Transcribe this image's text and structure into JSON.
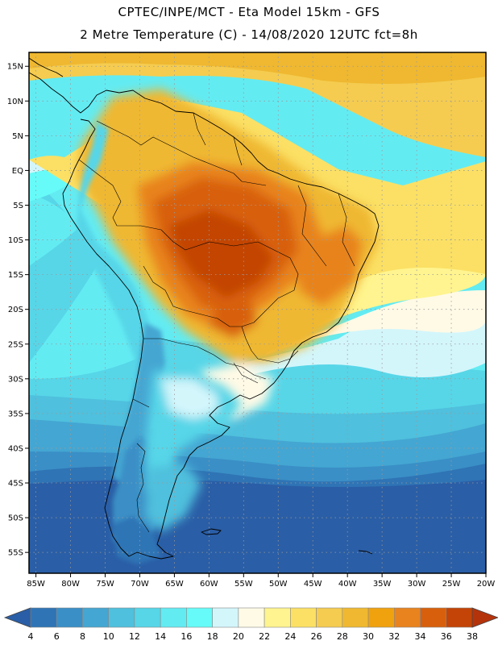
{
  "header": {
    "line1": "CPTEC/INPE/MCT -  Eta Model 15km - GFS",
    "line2": "2 Metre Temperature (C) - 14/08/2020 12UTC fct=8h"
  },
  "map": {
    "lon_range": [
      -86,
      -20
    ],
    "lat_range": [
      -58,
      17
    ],
    "lat_ticks": [
      {
        "value": 15,
        "label": "15N"
      },
      {
        "value": 10,
        "label": "10N"
      },
      {
        "value": 5,
        "label": "5N"
      },
      {
        "value": 0,
        "label": "EQ"
      },
      {
        "value": -5,
        "label": "5S"
      },
      {
        "value": -10,
        "label": "10S"
      },
      {
        "value": -15,
        "label": "15S"
      },
      {
        "value": -20,
        "label": "20S"
      },
      {
        "value": -25,
        "label": "25S"
      },
      {
        "value": -30,
        "label": "30S"
      },
      {
        "value": -35,
        "label": "35S"
      },
      {
        "value": -40,
        "label": "40S"
      },
      {
        "value": -45,
        "label": "45S"
      },
      {
        "value": -50,
        "label": "50S"
      },
      {
        "value": -55,
        "label": "55S"
      }
    ],
    "lon_ticks": [
      {
        "value": -85,
        "label": "85W"
      },
      {
        "value": -80,
        "label": "80W"
      },
      {
        "value": -75,
        "label": "75W"
      },
      {
        "value": -70,
        "label": "70W"
      },
      {
        "value": -65,
        "label": "65W"
      },
      {
        "value": -60,
        "label": "60W"
      },
      {
        "value": -55,
        "label": "55W"
      },
      {
        "value": -50,
        "label": "50W"
      },
      {
        "value": -45,
        "label": "45W"
      },
      {
        "value": -40,
        "label": "40W"
      },
      {
        "value": -35,
        "label": "35W"
      },
      {
        "value": -30,
        "label": "30W"
      },
      {
        "value": -25,
        "label": "25W"
      },
      {
        "value": -20,
        "label": "20W"
      }
    ]
  },
  "colorbar": {
    "labels": [
      "4",
      "6",
      "8",
      "10",
      "12",
      "14",
      "16",
      "18",
      "20",
      "22",
      "24",
      "26",
      "28",
      "30",
      "32",
      "34",
      "36",
      "38"
    ],
    "colors": [
      "#2a5ea6",
      "#2f74b5",
      "#3a8fc6",
      "#44a6d2",
      "#4fc0dd",
      "#57d6e8",
      "#63ebf2",
      "#66fbf8",
      "#d3f6fb",
      "#fffae6",
      "#fff48f",
      "#fbe065",
      "#f5cc50",
      "#efb830",
      "#f0a20e",
      "#e8831e",
      "#d8600c",
      "#c34406",
      "#b5330b"
    ]
  }
}
